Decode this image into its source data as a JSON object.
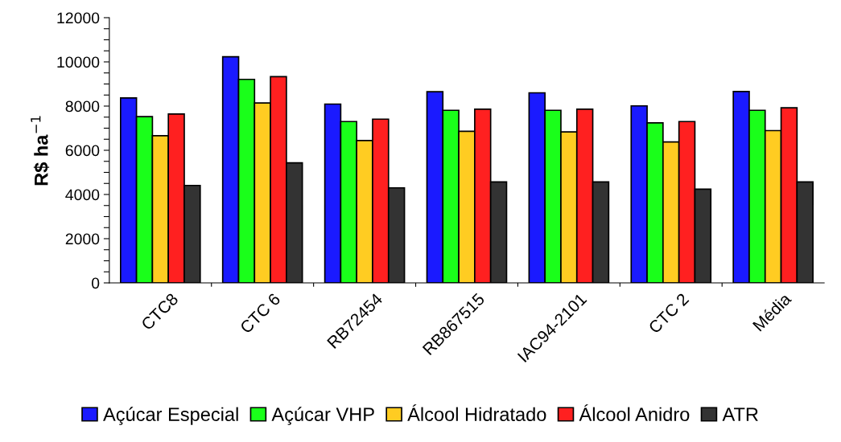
{
  "chart_data": {
    "type": "bar",
    "ylabel": "R$ ha$^{−1}$",
    "categories": [
      "CTC8",
      "CTC 6",
      "RB72454",
      "RB867515",
      "IAC94-2101",
      "CTC 2",
      "Média"
    ],
    "series": [
      {
        "name": "Açúcar Especial",
        "color": "#1a1aff",
        "values": [
          8370,
          10230,
          8090,
          8650,
          8600,
          8010,
          8660
        ]
      },
      {
        "name": "Açúcar VHP",
        "color": "#1aff1a",
        "values": [
          7520,
          9210,
          7300,
          7810,
          7810,
          7240,
          7810
        ]
      },
      {
        "name": "Álcool Hidratado",
        "color": "#ffcc22",
        "values": [
          6660,
          8140,
          6440,
          6860,
          6830,
          6380,
          6890
        ]
      },
      {
        "name": "Álcool Anidro",
        "color": "#ff2020",
        "values": [
          7640,
          9330,
          7410,
          7860,
          7860,
          7300,
          7920
        ]
      },
      {
        "name": "ATR",
        "color": "#333333",
        "values": [
          4410,
          5430,
          4300,
          4570,
          4570,
          4240,
          4570
        ]
      }
    ],
    "ylim": [
      0,
      12000
    ],
    "yticks": [
      0,
      {
        "value": 500,
        "label": null
      },
      {
        "value": 1000,
        "label": null
      },
      {
        "value": 1500,
        "label": null
      },
      2000,
      {
        "value": 2500,
        "label": null
      },
      {
        "value": 3000,
        "label": null
      },
      {
        "value": 3500,
        "label": null
      },
      4000,
      {
        "value": 4500,
        "label": null
      },
      {
        "value": 5000,
        "label": null
      },
      {
        "value": 5500,
        "label": null
      },
      6000,
      {
        "value": 6500,
        "label": null
      },
      {
        "value": 7000,
        "label": null
      },
      {
        "value": 7500,
        "label": null
      },
      8000,
      {
        "value": 8500,
        "label": null
      },
      {
        "value": 9000,
        "label": null
      },
      {
        "value": 9500,
        "label": null
      },
      10000,
      {
        "value": 10500,
        "label": null
      },
      {
        "value": 11000,
        "label": null
      },
      {
        "value": 11500,
        "label": null
      },
      12000
    ],
    "legend": "bottom",
    "grid": false
  }
}
